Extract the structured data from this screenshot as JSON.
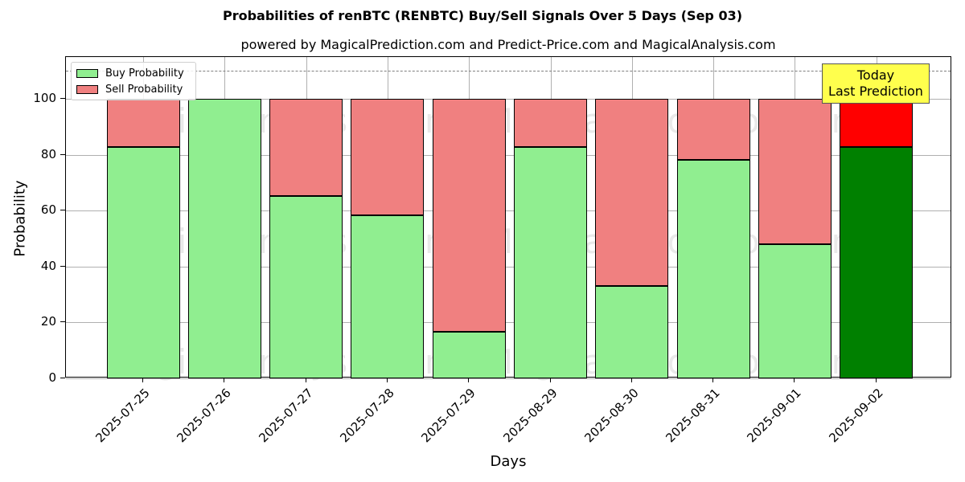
{
  "chart_data": {
    "type": "bar",
    "stacked": true,
    "title": "Probabilities of renBTC (RENBTC) Buy/Sell Signals Over 5 Days (Sep 03)",
    "subtitle": "powered by MagicalPrediction.com and Predict-Price.com and MagicalAnalysis.com",
    "xlabel": "Days",
    "ylabel": "Probability",
    "ylim": [
      0,
      115
    ],
    "yticks": [
      0,
      20,
      40,
      60,
      80,
      100
    ],
    "grid": true,
    "legend_position": "upper left",
    "categories": [
      "2025-07-25",
      "2025-07-26",
      "2025-07-27",
      "2025-07-28",
      "2025-07-29",
      "2025-08-29",
      "2025-08-30",
      "2025-08-31",
      "2025-09-01",
      "2025-09-02"
    ],
    "series": [
      {
        "name": "Buy Probability",
        "color": "#90ee90",
        "values": [
          82.7,
          100.0,
          65.3,
          58.4,
          16.8,
          82.7,
          33.2,
          78.3,
          48.0,
          82.7
        ]
      },
      {
        "name": "Sell Probability",
        "color": "#f08080",
        "values": [
          17.3,
          0.0,
          34.7,
          41.6,
          83.2,
          17.3,
          66.8,
          21.7,
          52.0,
          17.3
        ]
      }
    ],
    "highlight": {
      "index": 9,
      "buy_color": "#008000",
      "sell_color": "#ff0000"
    },
    "threshold_line": {
      "value": 110,
      "style": "dashed",
      "color": "#808080"
    },
    "annotations": [
      {
        "text_line1": "Today",
        "text_line2": "Last Prediction",
        "category": "2025-09-02",
        "background": "#ffff4d"
      }
    ],
    "watermarks": [
      "MagicalAnalysis.com",
      "MagicalPrediction.com"
    ]
  },
  "legend": {
    "buy_label": "Buy Probability",
    "sell_label": "Sell Probability"
  },
  "yticks_labels": [
    "0",
    "20",
    "40",
    "60",
    "80",
    "100"
  ]
}
